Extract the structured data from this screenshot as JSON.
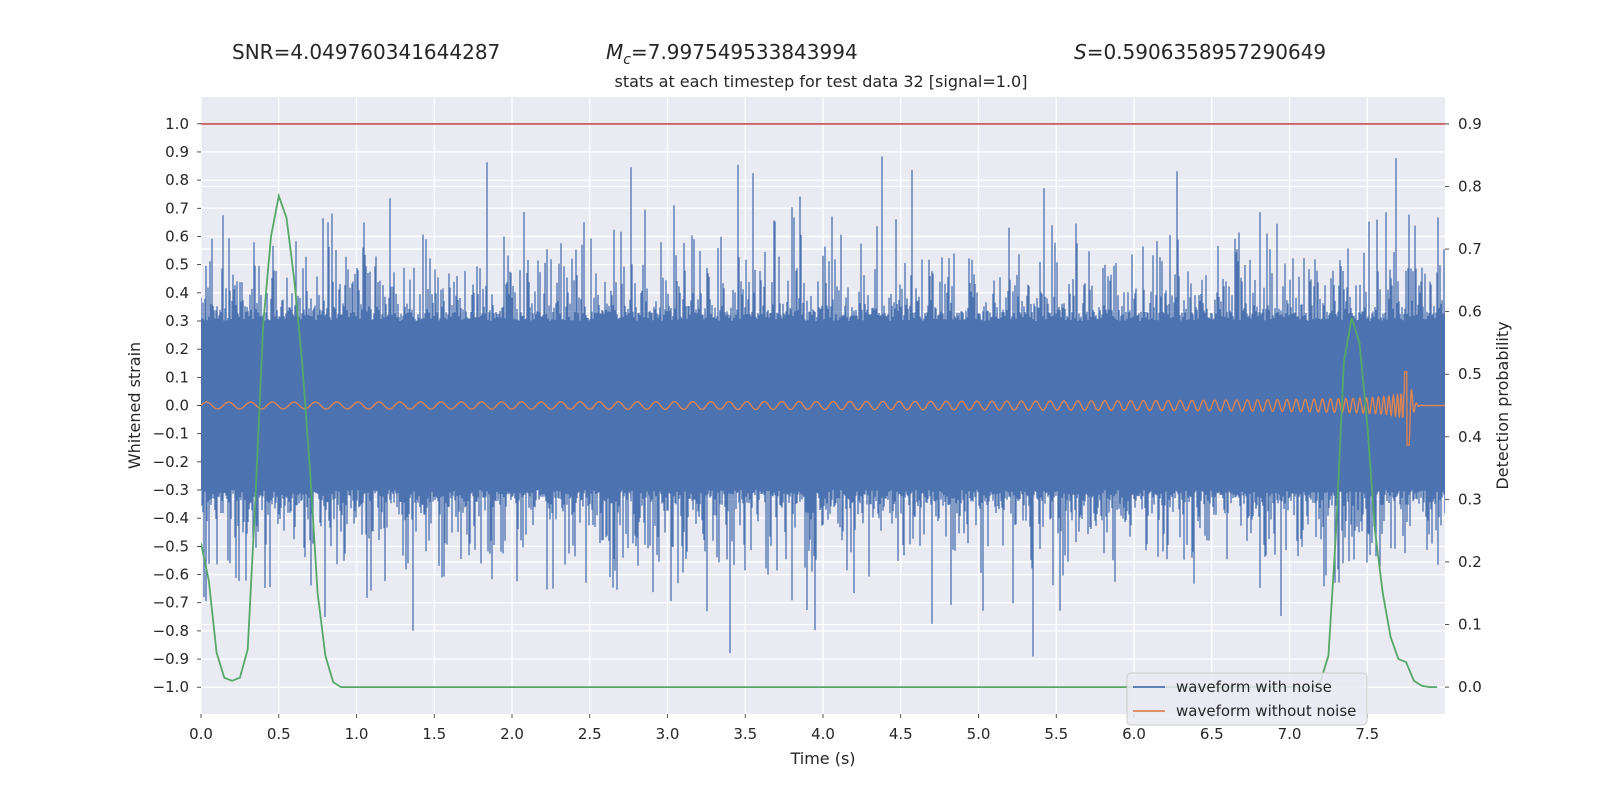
{
  "header": {
    "snr_label": "SNR",
    "snr_value": "=4.049760341644287",
    "mc_symbol": "M",
    "mc_sub": "c",
    "mc_value": "=7.997549533843994",
    "s_symbol": "S",
    "s_value": "=0.5906358957290649",
    "subtitle": "stats at each timestep for test data 32 [signal=1.0]"
  },
  "chart_data": {
    "type": "line",
    "title": "stats at each timestep for test data 32 [signal=1.0]",
    "xlabel": "Time (s)",
    "ylabel": "Whitened strain",
    "y2label": "Detection probability",
    "xlim": [
      0.0,
      8.0
    ],
    "ylim": [
      -1.095,
      1.095
    ],
    "y2lim": [
      -0.043,
      0.943
    ],
    "x_ticks": [
      "0.0",
      "0.5",
      "1.0",
      "1.5",
      "2.0",
      "2.5",
      "3.0",
      "3.5",
      "4.0",
      "4.5",
      "5.0",
      "5.5",
      "6.0",
      "6.5",
      "7.0",
      "7.5"
    ],
    "y_ticks": [
      "1.0",
      "0.9",
      "0.8",
      "0.7",
      "0.6",
      "0.5",
      "0.4",
      "0.3",
      "0.2",
      "0.1",
      "0.0",
      "−0.1",
      "−0.2",
      "−0.3",
      "−0.4",
      "−0.5",
      "−0.6",
      "−0.7",
      "−0.8",
      "−0.9",
      "−1.0"
    ],
    "y2_ticks": [
      "0.9",
      "0.8",
      "0.7",
      "0.6",
      "0.5",
      "0.4",
      "0.3",
      "0.2",
      "0.1",
      "0.0"
    ],
    "threshold": {
      "value": 0.9,
      "axis": "right",
      "color": "#c44e52"
    },
    "legend": {
      "location": "lower-right",
      "entries": [
        "waveform with noise",
        "waveform without noise"
      ]
    },
    "series": [
      {
        "name": "waveform with noise",
        "axis": "left",
        "color": "#4c72b0",
        "description": "whitened noisy strain, core amplitude about ±0.3 with spikes to about ±0.97",
        "core_amplitude": 0.3,
        "max_amplitude": 0.97
      },
      {
        "name": "waveform without noise",
        "axis": "left",
        "color": "#dd8452",
        "description": "chirp signal growing toward merger",
        "merger_time": 7.77,
        "start_amplitude": 0.012,
        "peak_amplitude": 0.12,
        "min_amplitude": -0.14,
        "start_frequency": 7.0,
        "end_frequency": 60.0
      },
      {
        "name": "detection probability",
        "axis": "right",
        "color": "#55a868",
        "x": [
          0.0,
          0.05,
          0.1,
          0.15,
          0.2,
          0.25,
          0.3,
          0.35,
          0.4,
          0.45,
          0.5,
          0.55,
          0.6,
          0.65,
          0.7,
          0.75,
          0.8,
          0.85,
          0.9,
          0.95,
          1.0,
          7.1,
          7.15,
          7.2,
          7.25,
          7.3,
          7.35,
          7.4,
          7.45,
          7.5,
          7.55,
          7.6,
          7.65,
          7.7,
          7.75,
          7.8,
          7.85,
          7.9,
          7.95
        ],
        "y": [
          0.23,
          0.17,
          0.055,
          0.015,
          0.01,
          0.015,
          0.06,
          0.3,
          0.58,
          0.72,
          0.785,
          0.75,
          0.65,
          0.52,
          0.35,
          0.15,
          0.05,
          0.008,
          0.0,
          0.0,
          0.0,
          0.0,
          0.0,
          0.01,
          0.05,
          0.25,
          0.52,
          0.59,
          0.55,
          0.42,
          0.25,
          0.15,
          0.08,
          0.045,
          0.04,
          0.01,
          0.002,
          0.0,
          0.0
        ]
      }
    ]
  }
}
